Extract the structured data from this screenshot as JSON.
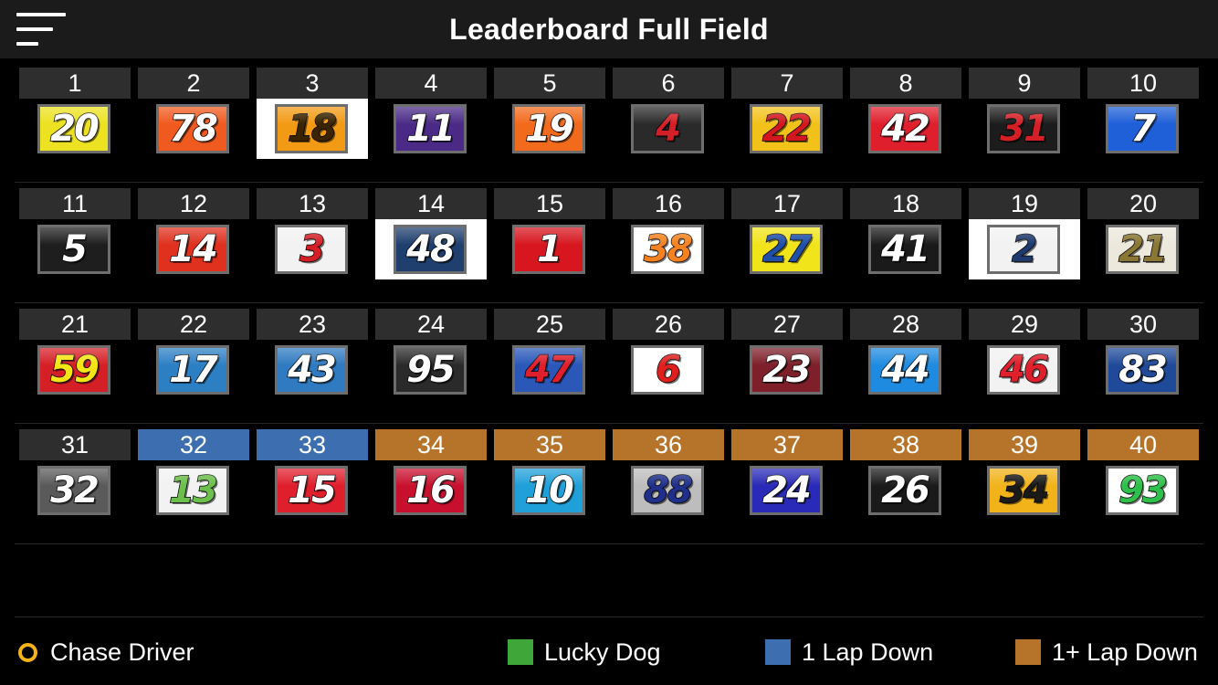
{
  "header": {
    "title": "Leaderboard Full Field"
  },
  "legend": {
    "chase_label": "Chase Driver",
    "lucky_label": "Lucky Dog",
    "lap1_label": "1 Lap Down",
    "lapplus_label": "1+ Lap Down",
    "colors": {
      "chase": "#f5b21b",
      "lucky": "#3fa63a",
      "lap1": "#3d6fb0",
      "lapplus": "#b5742a"
    }
  },
  "cars": [
    {
      "pos": "1",
      "num": "20",
      "bg": "#ece221",
      "fg": "#ffffff",
      "status": "normal"
    },
    {
      "pos": "2",
      "num": "78",
      "bg": "#f15a1f",
      "fg": "#ffffff",
      "status": "normal"
    },
    {
      "pos": "3",
      "num": "18",
      "bg": "#f39a14",
      "fg": "#3a2400",
      "status": "normal",
      "selected": true
    },
    {
      "pos": "4",
      "num": "11",
      "bg": "#4a2a86",
      "fg": "#ffffff",
      "status": "normal"
    },
    {
      "pos": "5",
      "num": "19",
      "bg": "#f26a1b",
      "fg": "#ffffff",
      "status": "normal"
    },
    {
      "pos": "6",
      "num": "4",
      "bg": "#2a2a2a",
      "fg": "#d51f26",
      "status": "normal"
    },
    {
      "pos": "7",
      "num": "22",
      "bg": "#f2c21a",
      "fg": "#d4161e",
      "status": "normal"
    },
    {
      "pos": "8",
      "num": "42",
      "bg": "#e01f2d",
      "fg": "#ffffff",
      "status": "normal"
    },
    {
      "pos": "9",
      "num": "31",
      "bg": "#1c1c1c",
      "fg": "#d51f26",
      "status": "normal"
    },
    {
      "pos": "10",
      "num": "7",
      "bg": "#1f5fd8",
      "fg": "#ffffff",
      "status": "normal"
    },
    {
      "pos": "11",
      "num": "5",
      "bg": "#1e1e1e",
      "fg": "#ffffff",
      "status": "normal"
    },
    {
      "pos": "12",
      "num": "14",
      "bg": "#e0301e",
      "fg": "#ffffff",
      "status": "normal"
    },
    {
      "pos": "13",
      "num": "3",
      "bg": "#f2f2f2",
      "fg": "#d51f26",
      "status": "normal"
    },
    {
      "pos": "14",
      "num": "48",
      "bg": "#1f3f6e",
      "fg": "#ffffff",
      "status": "normal",
      "selected": true
    },
    {
      "pos": "15",
      "num": "1",
      "bg": "#d7161f",
      "fg": "#ffffff",
      "status": "normal"
    },
    {
      "pos": "16",
      "num": "38",
      "bg": "#ffffff",
      "fg": "#f58220",
      "status": "normal"
    },
    {
      "pos": "17",
      "num": "27",
      "bg": "#f2e41a",
      "fg": "#1f4fa8",
      "status": "normal"
    },
    {
      "pos": "18",
      "num": "41",
      "bg": "#1a1a1a",
      "fg": "#ffffff",
      "status": "normal"
    },
    {
      "pos": "19",
      "num": "2",
      "bg": "#f2f2f2",
      "fg": "#1f3a6e",
      "status": "normal",
      "selected": true
    },
    {
      "pos": "20",
      "num": "21",
      "bg": "#ece8dc",
      "fg": "#8a7635",
      "status": "normal"
    },
    {
      "pos": "21",
      "num": "59",
      "bg": "#d51f26",
      "fg": "#f5e514",
      "status": "normal"
    },
    {
      "pos": "22",
      "num": "17",
      "bg": "#2d7fc4",
      "fg": "#ffffff",
      "status": "normal"
    },
    {
      "pos": "23",
      "num": "43",
      "bg": "#2f7ac0",
      "fg": "#ffffff",
      "status": "normal"
    },
    {
      "pos": "24",
      "num": "95",
      "bg": "#2a2a2a",
      "fg": "#ffffff",
      "status": "normal"
    },
    {
      "pos": "25",
      "num": "47",
      "bg": "#2a57b8",
      "fg": "#e01f2d",
      "status": "normal"
    },
    {
      "pos": "26",
      "num": "6",
      "bg": "#ffffff",
      "fg": "#e0201f",
      "status": "normal"
    },
    {
      "pos": "27",
      "num": "23",
      "bg": "#7e1f2a",
      "fg": "#ffffff",
      "status": "normal"
    },
    {
      "pos": "28",
      "num": "44",
      "bg": "#1f8be0",
      "fg": "#ffffff",
      "status": "normal"
    },
    {
      "pos": "29",
      "num": "46",
      "bg": "#f2f2f2",
      "fg": "#e01f2d",
      "status": "normal"
    },
    {
      "pos": "30",
      "num": "83",
      "bg": "#1f4a9a",
      "fg": "#ffffff",
      "status": "normal"
    },
    {
      "pos": "31",
      "num": "32",
      "bg": "#5a5a5a",
      "fg": "#ffffff",
      "status": "normal"
    },
    {
      "pos": "32",
      "num": "13",
      "bg": "#f2f2f2",
      "fg": "#6cbf4b",
      "status": "lap1"
    },
    {
      "pos": "33",
      "num": "15",
      "bg": "#e01f2d",
      "fg": "#ffffff",
      "status": "lap1"
    },
    {
      "pos": "34",
      "num": "16",
      "bg": "#c8102e",
      "fg": "#ffffff",
      "status": "lapplus"
    },
    {
      "pos": "35",
      "num": "10",
      "bg": "#1fa0d8",
      "fg": "#ffffff",
      "status": "lapplus"
    },
    {
      "pos": "36",
      "num": "88",
      "bg": "#bdbdbd",
      "fg": "#1f2f8a",
      "status": "lapplus"
    },
    {
      "pos": "37",
      "num": "24",
      "bg": "#2a2ab8",
      "fg": "#ffffff",
      "status": "lapplus"
    },
    {
      "pos": "38",
      "num": "26",
      "bg": "#1a1a1a",
      "fg": "#ffffff",
      "status": "lapplus"
    },
    {
      "pos": "39",
      "num": "34",
      "bg": "#f2b31a",
      "fg": "#1a1a1a",
      "status": "lapplus"
    },
    {
      "pos": "40",
      "num": "93",
      "bg": "#ffffff",
      "fg": "#2fbf4b",
      "status": "lapplus"
    }
  ]
}
